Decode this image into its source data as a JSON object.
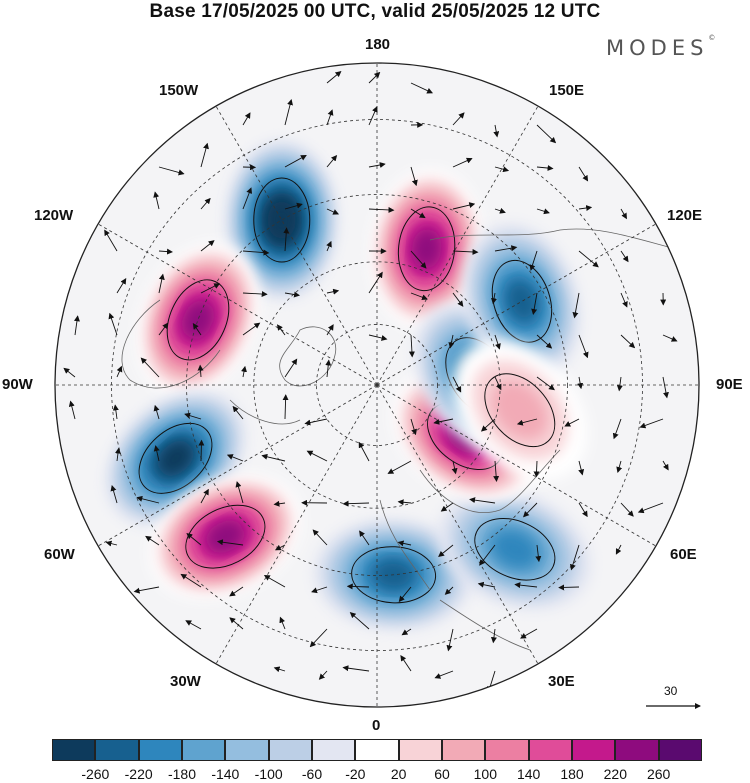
{
  "header": {
    "title": "Base 17/05/2025 00 UTC, valid 25/05/2025 12 UTC",
    "brand": "MODES",
    "brand_mark": "©"
  },
  "map": {
    "projection": "north-polar-stereographic",
    "longitude_labels": [
      {
        "id": "lon-180",
        "text": "180"
      },
      {
        "id": "lon-150e",
        "text": "150E"
      },
      {
        "id": "lon-120e",
        "text": "120E"
      },
      {
        "id": "lon-90e",
        "text": "90E"
      },
      {
        "id": "lon-60e",
        "text": "60E"
      },
      {
        "id": "lon-30e",
        "text": "30E"
      },
      {
        "id": "lon-0",
        "text": "0"
      },
      {
        "id": "lon-30w",
        "text": "30W"
      },
      {
        "id": "lon-60w",
        "text": "60W"
      },
      {
        "id": "lon-90w",
        "text": "90W"
      },
      {
        "id": "lon-120w",
        "text": "120W"
      },
      {
        "id": "lon-150w",
        "text": "150W"
      }
    ],
    "anomalies": [
      {
        "sign": "negative",
        "lon": -150,
        "lat": 45,
        "peak": -260
      },
      {
        "sign": "positive",
        "lon": 160,
        "lat": 55,
        "peak": 220
      },
      {
        "sign": "positive",
        "lon": -110,
        "lat": 45,
        "peak": 220
      },
      {
        "sign": "negative",
        "lon": -70,
        "lat": 40,
        "peak": -220
      },
      {
        "sign": "positive",
        "lon": -45,
        "lat": 40,
        "peak": 220
      },
      {
        "sign": "negative",
        "lon": 5,
        "lat": 45,
        "peak": -180
      },
      {
        "sign": "negative",
        "lon": 40,
        "lat": 40,
        "peak": -140
      },
      {
        "sign": "positive",
        "lon": 60,
        "lat": 65,
        "peak": 220
      },
      {
        "sign": "negative",
        "lon": 95,
        "lat": 65,
        "peak": -180
      },
      {
        "sign": "negative",
        "lon": 120,
        "lat": 50,
        "peak": -180
      },
      {
        "sign": "positive",
        "lon": 80,
        "lat": 55,
        "peak": 60
      }
    ],
    "reference_vector_label": "30"
  },
  "colorbar": {
    "colors": [
      "#0d3a5c",
      "#17608f",
      "#2e86bd",
      "#5fa3cf",
      "#94bedf",
      "#bccfe6",
      "#e3e6f2",
      "#ffffff",
      "#f8d3d7",
      "#f2aab6",
      "#ec7fa2",
      "#e04c99",
      "#c4198c",
      "#8e0b7e",
      "#5a0a6f"
    ],
    "tick_labels": [
      "-260",
      "-220",
      "-180",
      "-140",
      "-100",
      "-60",
      "-20",
      "20",
      "60",
      "100",
      "140",
      "180",
      "220",
      "260"
    ]
  }
}
